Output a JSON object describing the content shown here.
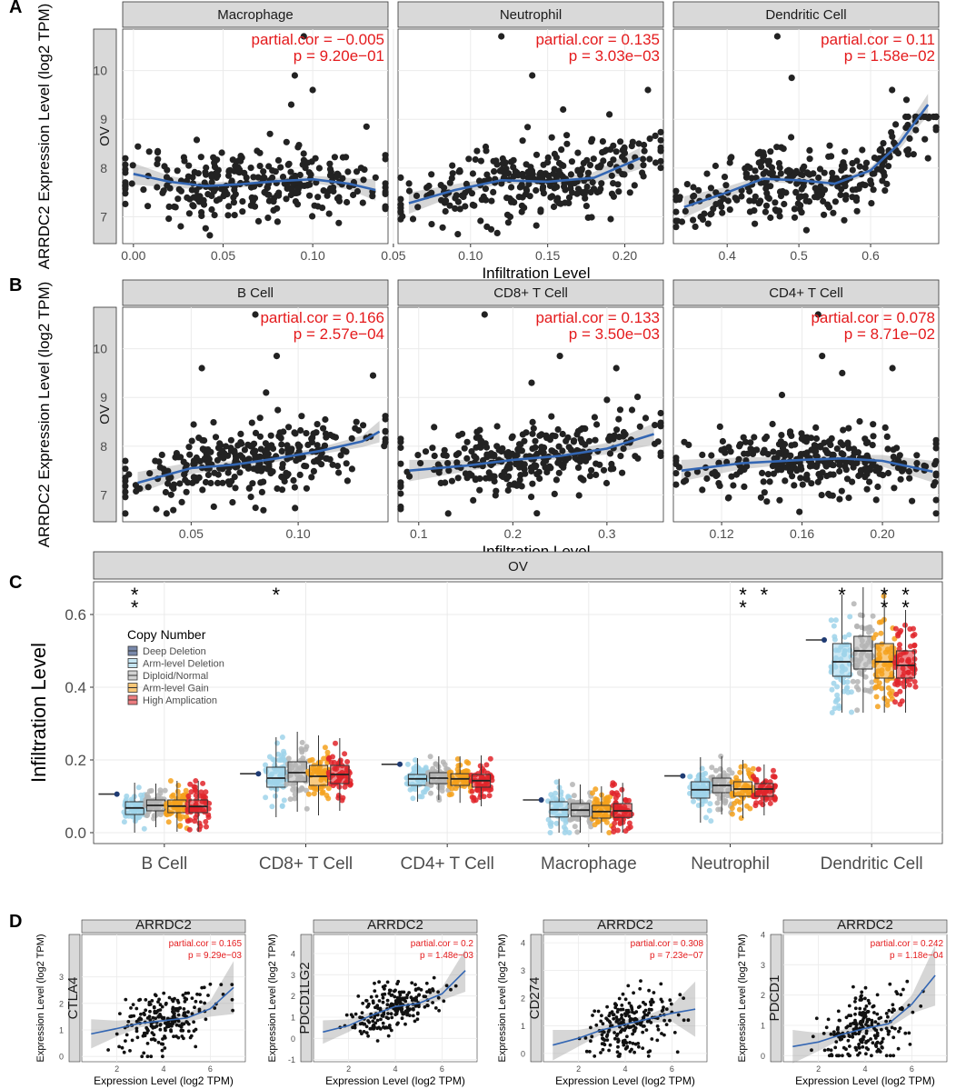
{
  "chart_data": [
    {
      "id": "A",
      "type": "scatter",
      "panel_label": "A",
      "ylabel": "ARRDC2 Expression Level (log2 TPM)",
      "xlabel": "Infiltration Level",
      "row_strip": "OV",
      "ylim": [
        6.45,
        10.85
      ],
      "yticks": [
        7,
        8,
        9,
        10
      ],
      "facets": [
        {
          "title": "Macrophage",
          "xlim": [
            -0.006,
            0.142
          ],
          "xticks": [
            0.0,
            0.05,
            0.1
          ],
          "xtick_labels": [
            "0.00",
            "0.05",
            "0.10"
          ],
          "ann_cor": "partial.cor = −0.005",
          "ann_p": "p = 9.20e−01",
          "trend": [
            [
              0.0,
              7.88
            ],
            [
              0.02,
              7.72
            ],
            [
              0.04,
              7.63
            ],
            [
              0.06,
              7.67
            ],
            [
              0.08,
              7.73
            ],
            [
              0.1,
              7.77
            ],
            [
              0.12,
              7.68
            ],
            [
              0.135,
              7.55
            ]
          ],
          "outliers": [
            [
              0.095,
              10.7
            ],
            [
              0.1,
              9.6
            ],
            [
              0.088,
              9.3
            ],
            [
              0.13,
              8.85
            ],
            [
              0.09,
              9.9
            ]
          ],
          "n": 300,
          "seed": 11
        },
        {
          "title": "Neutrophil",
          "xlim": [
            0.053,
            0.225
          ],
          "xticks": [
            0.05,
            0.1,
            0.15,
            0.2
          ],
          "xtick_labels": [
            "0.05",
            "0.10",
            "0.15",
            "0.20"
          ],
          "ann_cor": "partial.cor = 0.135",
          "ann_p": "p = 3.03e−03",
          "trend": [
            [
              0.06,
              7.28
            ],
            [
              0.09,
              7.55
            ],
            [
              0.12,
              7.75
            ],
            [
              0.15,
              7.72
            ],
            [
              0.18,
              7.8
            ],
            [
              0.21,
              8.2
            ]
          ],
          "outliers": [
            [
              0.12,
              10.7
            ],
            [
              0.14,
              9.9
            ],
            [
              0.215,
              9.6
            ],
            [
              0.19,
              9.1
            ],
            [
              0.16,
              9.2
            ]
          ],
          "n": 300,
          "seed": 23
        },
        {
          "title": "Dendritic Cell",
          "xlim": [
            0.325,
            0.695
          ],
          "xticks": [
            0.4,
            0.5,
            0.6
          ],
          "xtick_labels": [
            "0.4",
            "0.5",
            "0.6"
          ],
          "ann_cor": "partial.cor = 0.11",
          "ann_p": "p = 1.58e−02",
          "trend": [
            [
              0.34,
              7.2
            ],
            [
              0.4,
              7.5
            ],
            [
              0.45,
              7.78
            ],
            [
              0.5,
              7.75
            ],
            [
              0.55,
              7.68
            ],
            [
              0.6,
              7.95
            ],
            [
              0.64,
              8.5
            ],
            [
              0.68,
              9.3
            ]
          ],
          "outliers": [
            [
              0.47,
              10.7
            ],
            [
              0.63,
              9.6
            ],
            [
              0.49,
              9.85
            ],
            [
              0.65,
              9.4
            ],
            [
              0.68,
              8.2
            ]
          ],
          "n": 300,
          "seed": 37
        }
      ]
    },
    {
      "id": "B",
      "type": "scatter",
      "panel_label": "B",
      "ylabel": "ARRDC2 Expression Level (log2 TPM)",
      "xlabel": "Infiltration Level",
      "row_strip": "OV",
      "ylim": [
        6.45,
        10.85
      ],
      "yticks": [
        7,
        8,
        9,
        10
      ],
      "facets": [
        {
          "title": "B Cell",
          "xlim": [
            0.018,
            0.142
          ],
          "xticks": [
            0.05,
            0.1
          ],
          "xtick_labels": [
            "0.05",
            "0.10"
          ],
          "ann_cor": "partial.cor = 0.166",
          "ann_p": "p = 2.57e−04",
          "trend": [
            [
              0.025,
              7.25
            ],
            [
              0.05,
              7.55
            ],
            [
              0.07,
              7.62
            ],
            [
              0.09,
              7.75
            ],
            [
              0.11,
              7.9
            ],
            [
              0.13,
              8.1
            ],
            [
              0.138,
              8.3
            ]
          ],
          "outliers": [
            [
              0.08,
              10.7
            ],
            [
              0.09,
              9.85
            ],
            [
              0.055,
              9.6
            ],
            [
              0.135,
              9.45
            ],
            [
              0.085,
              9.1
            ]
          ],
          "n": 300,
          "seed": 53
        },
        {
          "title": "CD8+ T Cell",
          "xlim": [
            0.078,
            0.36
          ],
          "xticks": [
            0.1,
            0.2,
            0.3
          ],
          "xtick_labels": [
            "0.1",
            "0.2",
            "0.3"
          ],
          "ann_cor": "partial.cor = 0.133",
          "ann_p": "p = 3.50e−03",
          "trend": [
            [
              0.09,
              7.5
            ],
            [
              0.15,
              7.6
            ],
            [
              0.2,
              7.72
            ],
            [
              0.25,
              7.8
            ],
            [
              0.3,
              7.95
            ],
            [
              0.35,
              8.25
            ]
          ],
          "outliers": [
            [
              0.17,
              10.7
            ],
            [
              0.25,
              9.85
            ],
            [
              0.31,
              9.6
            ],
            [
              0.22,
              9.3
            ],
            [
              0.3,
              8.95
            ]
          ],
          "n": 300,
          "seed": 71
        },
        {
          "title": "CD4+ T Cell",
          "xlim": [
            0.096,
            0.228
          ],
          "xticks": [
            0.12,
            0.16,
            0.2
          ],
          "xtick_labels": [
            "0.12",
            "0.16",
            "0.20"
          ],
          "ann_cor": "partial.cor = 0.078",
          "ann_p": "p = 8.71e−02",
          "trend": [
            [
              0.1,
              7.5
            ],
            [
              0.13,
              7.65
            ],
            [
              0.16,
              7.72
            ],
            [
              0.18,
              7.75
            ],
            [
              0.2,
              7.7
            ],
            [
              0.225,
              7.48
            ]
          ],
          "outliers": [
            [
              0.168,
              10.7
            ],
            [
              0.17,
              9.85
            ],
            [
              0.205,
              9.6
            ],
            [
              0.18,
              9.5
            ],
            [
              0.15,
              9.05
            ]
          ],
          "n": 300,
          "seed": 97
        }
      ]
    },
    {
      "id": "C",
      "type": "box",
      "panel_label": "C",
      "strip_title": "OV",
      "ylabel": "Infiltration Level",
      "ylim": [
        -0.03,
        0.69
      ],
      "yticks": [
        0.0,
        0.2,
        0.4,
        0.6
      ],
      "ytick_labels": [
        "0.0",
        "0.2",
        "0.4",
        "0.6"
      ],
      "categories": [
        "B Cell",
        "CD8+ T Cell",
        "CD4+ T Cell",
        "Macrophage",
        "Neutrophil",
        "Dendritic Cell"
      ],
      "legend": {
        "title": "Copy Number",
        "entries": [
          "Deep Deletion",
          "Arm-level Deletion",
          "Diploid/Normal",
          "Arm-level Gain",
          "High Amplication"
        ],
        "colors": [
          "#1f3b73",
          "#9fd3ea",
          "#b4b4b4",
          "#f4a11c",
          "#e0242a"
        ],
        "position": "top-left"
      },
      "series": [
        {
          "name": "Deep Deletion",
          "values": [
            0.106,
            0.162,
            0.188,
            0.09,
            0.156,
            0.53
          ]
        },
        {
          "name": "Arm-level Deletion",
          "medians": [
            0.068,
            0.15,
            0.148,
            0.063,
            0.118,
            0.47
          ],
          "q1": [
            0.05,
            0.125,
            0.13,
            0.043,
            0.095,
            0.43
          ],
          "q3": [
            0.085,
            0.18,
            0.16,
            0.085,
            0.14,
            0.52
          ]
        },
        {
          "name": "Diploid/Normal",
          "medians": [
            0.075,
            0.165,
            0.15,
            0.062,
            0.13,
            0.5
          ],
          "q1": [
            0.06,
            0.14,
            0.135,
            0.045,
            0.11,
            0.45
          ],
          "q3": [
            0.09,
            0.195,
            0.165,
            0.08,
            0.15,
            0.54
          ]
        },
        {
          "name": "Arm-level Gain",
          "medians": [
            0.073,
            0.155,
            0.148,
            0.058,
            0.12,
            0.47
          ],
          "q1": [
            0.055,
            0.13,
            0.13,
            0.04,
            0.1,
            0.425
          ],
          "q3": [
            0.09,
            0.185,
            0.162,
            0.075,
            0.14,
            0.52
          ]
        },
        {
          "name": "High Amplication",
          "medians": [
            0.072,
            0.16,
            0.143,
            0.06,
            0.12,
            0.46
          ],
          "q1": [
            0.055,
            0.135,
            0.125,
            0.042,
            0.1,
            0.425
          ],
          "q3": [
            0.09,
            0.185,
            0.16,
            0.08,
            0.135,
            0.5
          ]
        }
      ],
      "significance": [
        {
          "category": 0,
          "group": 1,
          "text": "**"
        },
        {
          "category": 1,
          "group": 1,
          "text": "*"
        },
        {
          "category": 4,
          "group": 3,
          "text": "**"
        },
        {
          "category": 4,
          "group": 4,
          "text": "*"
        },
        {
          "category": 5,
          "group": 1,
          "text": "*"
        },
        {
          "category": 5,
          "group": 3,
          "text": "**"
        },
        {
          "category": 5,
          "group": 4,
          "text": "**"
        }
      ]
    },
    {
      "id": "D",
      "type": "scatter",
      "panel_label": "D",
      "ylabel": "Expression Level (log2 TPM)",
      "xlabel": "Expression Level (log2 TPM)",
      "facets": [
        {
          "title": "ARRDC2",
          "row_strip": "CTLA4",
          "xlim": [
            0.5,
            7.5
          ],
          "ylim": [
            -0.2,
            4.6
          ],
          "xticks": [
            2,
            4,
            6
          ],
          "yticks": [
            0,
            1,
            2,
            3
          ],
          "ann_cor": "partial.cor = 0.165",
          "ann_p": "p = 9.29e−03",
          "trend": [
            [
              0.9,
              0.85
            ],
            [
              2,
              1.05
            ],
            [
              3,
              1.25
            ],
            [
              4,
              1.35
            ],
            [
              5,
              1.45
            ],
            [
              6,
              1.8
            ],
            [
              7,
              2.6
            ]
          ],
          "n": 220,
          "seed": 7,
          "ymu": 1.25
        },
        {
          "title": "ARRDC2",
          "row_strip": "PDCD1LG2",
          "xlim": [
            0.5,
            7.5
          ],
          "ylim": [
            -1.1,
            4.9
          ],
          "xticks": [
            2,
            4,
            6
          ],
          "yticks": [
            -1,
            0,
            1,
            2,
            3,
            4
          ],
          "ann_cor": "partial.cor = 0.2",
          "ann_p": "p = 1.48e−03",
          "trend": [
            [
              0.9,
              0.3
            ],
            [
              2,
              0.6
            ],
            [
              3,
              1.1
            ],
            [
              4,
              1.5
            ],
            [
              5,
              1.65
            ],
            [
              6,
              2.1
            ],
            [
              7,
              3.2
            ]
          ],
          "n": 220,
          "seed": 19,
          "ymu": 1.4
        },
        {
          "title": "ARRDC2",
          "row_strip": "CD274",
          "xlim": [
            0.5,
            7.5
          ],
          "ylim": [
            -0.3,
            4.3
          ],
          "xticks": [
            2,
            4,
            6
          ],
          "yticks": [
            0,
            1,
            2,
            3,
            4
          ],
          "ann_cor": "partial.cor = 0.308",
          "ann_p": "p = 7.23e−07",
          "trend": [
            [
              0.9,
              0.3
            ],
            [
              2,
              0.55
            ],
            [
              3,
              0.85
            ],
            [
              4,
              1.05
            ],
            [
              5,
              1.25
            ],
            [
              6,
              1.45
            ],
            [
              7,
              1.6
            ]
          ],
          "n": 220,
          "seed": 29,
          "ymu": 1.0
        },
        {
          "title": "ARRDC2",
          "row_strip": "PDCD1",
          "xlim": [
            0.5,
            7.5
          ],
          "ylim": [
            -0.2,
            4.0
          ],
          "xticks": [
            2,
            4,
            6
          ],
          "yticks": [
            0,
            1,
            2,
            3,
            4
          ],
          "ann_cor": "partial.cor = 0.242",
          "ann_p": "p = 1.18e−04",
          "trend": [
            [
              0.9,
              0.3
            ],
            [
              2,
              0.45
            ],
            [
              3,
              0.7
            ],
            [
              4,
              0.9
            ],
            [
              5,
              1.05
            ],
            [
              6,
              1.7
            ],
            [
              7,
              2.65
            ]
          ],
          "n": 220,
          "seed": 41,
          "ymu": 1.1
        }
      ]
    }
  ]
}
